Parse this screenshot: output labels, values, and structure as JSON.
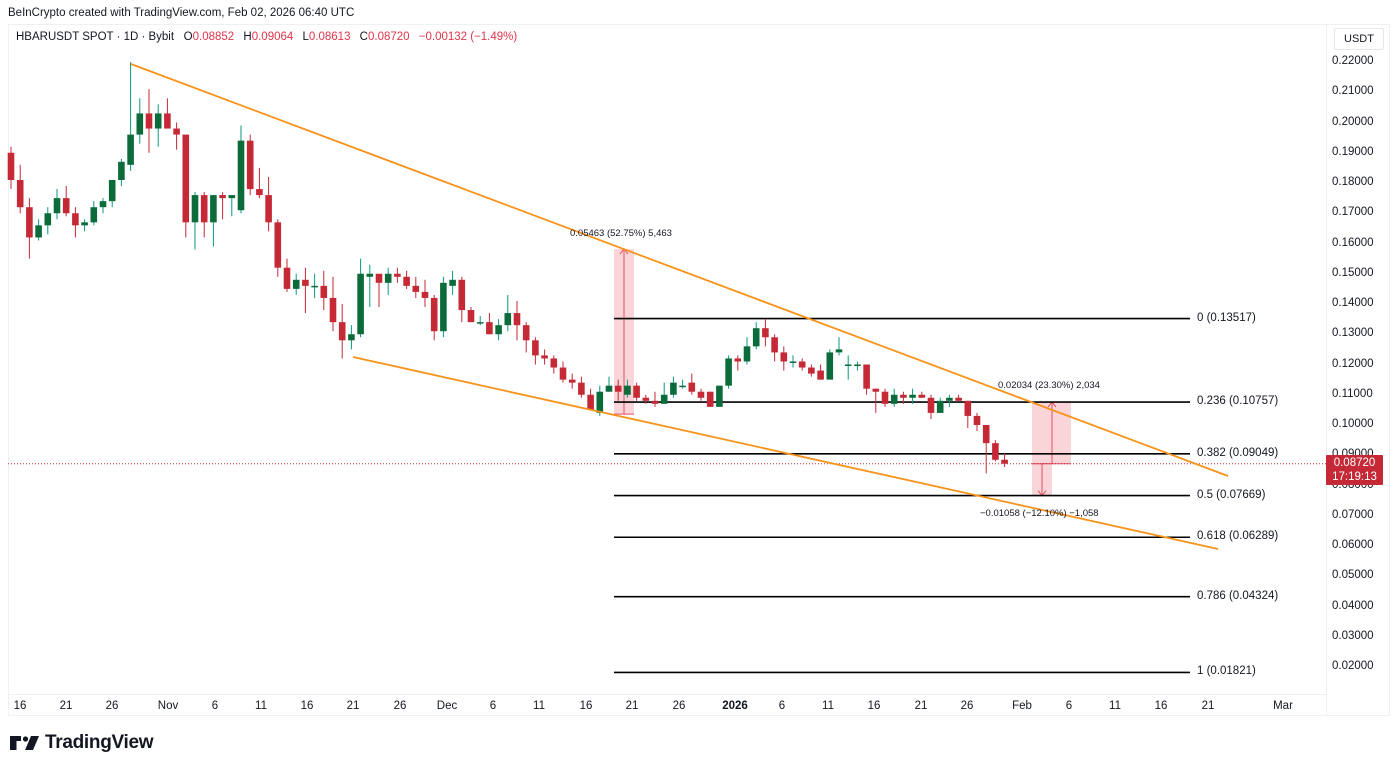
{
  "header": {
    "credit": "BeInCrypto created with TradingView.com, Feb 02, 2026 06:40 UTC",
    "symbol": "HBARUSDT SPOT · 1D · Bybit",
    "open_label": "O",
    "open": "0.08852",
    "high_label": "H",
    "high": "0.09064",
    "low_label": "L",
    "low": "0.08613",
    "close_label": "C",
    "close": "0.08720",
    "change": "−0.00132 (−1.49%)"
  },
  "price_axis": {
    "currency": "USDT",
    "last_price": "0.08720",
    "countdown": "17:19:13"
  },
  "branding": {
    "logo_text": "TradingView"
  },
  "colors": {
    "up": "#089981",
    "up_body": "#0b6b3a",
    "down": "#c42935",
    "trendline": "#f7931a",
    "fib_line": "#000000",
    "measure_fill": "#f7c6cb",
    "measure_line": "#e05263",
    "last_price_line": "#c42935"
  },
  "chart_data": {
    "type": "candlestick",
    "title": "HBARUSDT SPOT · 1D · Bybit",
    "xlabel": "",
    "ylabel": "USDT",
    "ylim": [
      0.015,
      0.225
    ],
    "y_ticks": [
      "0.22000",
      "0.21000",
      "0.20000",
      "0.19000",
      "0.18000",
      "0.17000",
      "0.16000",
      "0.15000",
      "0.14000",
      "0.13000",
      "0.12000",
      "0.11000",
      "0.10000",
      "0.09000",
      "0.08000",
      "0.07000",
      "0.06000",
      "0.05000",
      "0.04000",
      "0.03000",
      "0.02000"
    ],
    "x_ticks": [
      "16",
      "21",
      "26",
      "Nov",
      "6",
      "11",
      "16",
      "21",
      "26",
      "Dec",
      "6",
      "11",
      "16",
      "21",
      "26",
      "2026",
      "6",
      "11",
      "16",
      "21",
      "26",
      "Feb",
      "6",
      "11",
      "16",
      "21",
      "Mar"
    ],
    "candles_start": "Oct 16",
    "candles": [
      [
        0.19,
        0.192,
        0.178,
        0.181
      ],
      [
        0.181,
        0.186,
        0.17,
        0.172
      ],
      [
        0.172,
        0.175,
        0.155,
        0.162
      ],
      [
        0.162,
        0.168,
        0.161,
        0.166
      ],
      [
        0.166,
        0.172,
        0.163,
        0.17
      ],
      [
        0.17,
        0.178,
        0.168,
        0.175
      ],
      [
        0.175,
        0.179,
        0.169,
        0.17
      ],
      [
        0.17,
        0.172,
        0.162,
        0.166
      ],
      [
        0.166,
        0.168,
        0.164,
        0.167
      ],
      [
        0.167,
        0.174,
        0.166,
        0.172
      ],
      [
        0.172,
        0.175,
        0.17,
        0.174
      ],
      [
        0.174,
        0.181,
        0.172,
        0.181
      ],
      [
        0.181,
        0.188,
        0.179,
        0.187
      ],
      [
        0.186,
        0.22,
        0.184,
        0.196
      ],
      [
        0.196,
        0.208,
        0.193,
        0.203
      ],
      [
        0.203,
        0.211,
        0.19,
        0.198
      ],
      [
        0.198,
        0.206,
        0.192,
        0.203
      ],
      [
        0.203,
        0.208,
        0.198,
        0.198
      ],
      [
        0.198,
        0.2,
        0.191,
        0.196
      ],
      [
        0.196,
        0.195,
        0.162,
        0.167
      ],
      [
        0.167,
        0.177,
        0.158,
        0.176
      ],
      [
        0.176,
        0.177,
        0.162,
        0.167
      ],
      [
        0.167,
        0.176,
        0.159,
        0.176
      ],
      [
        0.176,
        0.177,
        0.168,
        0.175
      ],
      [
        0.175,
        0.176,
        0.169,
        0.176
      ],
      [
        0.171,
        0.199,
        0.17,
        0.194
      ],
      [
        0.194,
        0.196,
        0.176,
        0.178
      ],
      [
        0.178,
        0.185,
        0.175,
        0.176
      ],
      [
        0.176,
        0.182,
        0.164,
        0.167
      ],
      [
        0.167,
        0.168,
        0.149,
        0.152
      ],
      [
        0.152,
        0.155,
        0.144,
        0.145
      ],
      [
        0.145,
        0.15,
        0.143,
        0.148
      ],
      [
        0.148,
        0.152,
        0.137,
        0.146
      ],
      [
        0.146,
        0.15,
        0.142,
        0.146
      ],
      [
        0.146,
        0.151,
        0.138,
        0.142
      ],
      [
        0.142,
        0.149,
        0.131,
        0.134
      ],
      [
        0.134,
        0.14,
        0.122,
        0.128
      ],
      [
        0.128,
        0.133,
        0.125,
        0.13
      ],
      [
        0.13,
        0.155,
        0.129,
        0.15
      ],
      [
        0.149,
        0.153,
        0.139,
        0.15
      ],
      [
        0.15,
        0.149,
        0.139,
        0.147
      ],
      [
        0.147,
        0.152,
        0.143,
        0.15
      ],
      [
        0.15,
        0.152,
        0.147,
        0.149
      ],
      [
        0.149,
        0.151,
        0.145,
        0.146
      ],
      [
        0.146,
        0.149,
        0.142,
        0.144
      ],
      [
        0.144,
        0.148,
        0.139,
        0.142
      ],
      [
        0.142,
        0.143,
        0.128,
        0.131
      ],
      [
        0.131,
        0.149,
        0.129,
        0.147
      ],
      [
        0.146,
        0.151,
        0.143,
        0.148
      ],
      [
        0.148,
        0.149,
        0.134,
        0.138
      ],
      [
        0.138,
        0.139,
        0.134,
        0.134
      ],
      [
        0.134,
        0.136,
        0.133,
        0.134
      ],
      [
        0.134,
        0.137,
        0.13,
        0.13
      ],
      [
        0.13,
        0.135,
        0.128,
        0.133
      ],
      [
        0.133,
        0.143,
        0.131,
        0.137
      ],
      [
        0.137,
        0.141,
        0.128,
        0.133
      ],
      [
        0.133,
        0.134,
        0.124,
        0.128
      ],
      [
        0.128,
        0.129,
        0.12,
        0.123
      ],
      [
        0.123,
        0.125,
        0.12,
        0.122
      ],
      [
        0.122,
        0.123,
        0.117,
        0.119
      ],
      [
        0.119,
        0.121,
        0.114,
        0.115
      ],
      [
        0.115,
        0.117,
        0.112,
        0.114
      ],
      [
        0.114,
        0.116,
        0.109,
        0.11
      ],
      [
        0.11,
        0.112,
        0.105,
        0.105
      ],
      [
        0.104,
        0.113,
        0.103,
        0.111
      ],
      [
        0.111,
        0.116,
        0.111,
        0.113
      ],
      [
        0.113,
        0.115,
        0.108,
        0.111
      ],
      [
        0.11,
        0.115,
        0.109,
        0.113
      ],
      [
        0.113,
        0.114,
        0.108,
        0.109
      ],
      [
        0.109,
        0.11,
        0.107,
        0.108
      ],
      [
        0.108,
        0.111,
        0.106,
        0.107
      ],
      [
        0.107,
        0.114,
        0.107,
        0.11
      ],
      [
        0.11,
        0.116,
        0.109,
        0.114
      ],
      [
        0.113,
        0.115,
        0.112,
        0.113
      ],
      [
        0.114,
        0.117,
        0.11,
        0.111
      ],
      [
        0.111,
        0.112,
        0.108,
        0.109
      ],
      [
        0.111,
        0.111,
        0.106,
        0.106
      ],
      [
        0.106,
        0.113,
        0.106,
        0.113
      ],
      [
        0.113,
        0.123,
        0.112,
        0.122
      ],
      [
        0.122,
        0.123,
        0.118,
        0.121
      ],
      [
        0.121,
        0.129,
        0.12,
        0.126
      ],
      [
        0.126,
        0.134,
        0.125,
        0.132
      ],
      [
        0.132,
        0.135,
        0.126,
        0.129
      ],
      [
        0.129,
        0.13,
        0.121,
        0.124
      ],
      [
        0.124,
        0.126,
        0.118,
        0.121
      ],
      [
        0.121,
        0.123,
        0.119,
        0.121
      ],
      [
        0.121,
        0.122,
        0.118,
        0.119
      ],
      [
        0.119,
        0.12,
        0.116,
        0.117
      ],
      [
        0.118,
        0.12,
        0.115,
        0.115
      ],
      [
        0.115,
        0.125,
        0.115,
        0.124
      ],
      [
        0.124,
        0.129,
        0.123,
        0.125
      ],
      [
        0.12,
        0.123,
        0.115,
        0.12
      ],
      [
        0.12,
        0.121,
        0.118,
        0.12
      ],
      [
        0.12,
        0.12,
        0.11,
        0.112
      ],
      [
        0.112,
        0.112,
        0.104,
        0.111
      ],
      [
        0.111,
        0.112,
        0.106,
        0.107
      ],
      [
        0.107,
        0.112,
        0.106,
        0.11
      ],
      [
        0.11,
        0.111,
        0.107,
        0.109
      ],
      [
        0.109,
        0.112,
        0.107,
        0.11
      ],
      [
        0.11,
        0.111,
        0.109,
        0.109
      ],
      [
        0.109,
        0.11,
        0.102,
        0.104
      ],
      [
        0.104,
        0.109,
        0.104,
        0.108
      ],
      [
        0.108,
        0.11,
        0.106,
        0.109
      ],
      [
        0.109,
        0.11,
        0.108,
        0.108
      ],
      [
        0.108,
        0.108,
        0.099,
        0.103
      ],
      [
        0.103,
        0.104,
        0.098,
        0.1
      ],
      [
        0.1,
        0.1,
        0.084,
        0.094
      ],
      [
        0.094,
        0.095,
        0.088,
        0.0885
      ],
      [
        0.08852,
        0.09064,
        0.08613,
        0.0872
      ]
    ],
    "trendlines": [
      {
        "name": "upper-wedge",
        "from": [
          0.22,
          "Oct 29"
        ],
        "to": [
          0.0833,
          "Feb 21"
        ]
      },
      {
        "name": "lower-wedge",
        "from": [
          0.1225,
          "Nov 21"
        ],
        "to": [
          0.0589,
          "Feb 21"
        ]
      }
    ],
    "fib_levels": [
      {
        "ratio": "0",
        "price": 0.13517,
        "label": "0 (0.13517)"
      },
      {
        "ratio": "0.236",
        "price": 0.10757,
        "label": "0.236 (0.10757)"
      },
      {
        "ratio": "0.382",
        "price": 0.09049,
        "label": "0.382 (0.09049)"
      },
      {
        "ratio": "0.5",
        "price": 0.07669,
        "label": "0.5 (0.07669)"
      },
      {
        "ratio": "0.618",
        "price": 0.06289,
        "label": "0.618 (0.06289)"
      },
      {
        "ratio": "0.786",
        "price": 0.04324,
        "label": "0.786 (0.04324)"
      },
      {
        "ratio": "1",
        "price": 0.01821,
        "label": "1 (0.01821)"
      }
    ],
    "measurements": [
      {
        "label": "0.05463 (52.75%) 5,463",
        "from": 0.1036,
        "to": 0.1582
      },
      {
        "label": "0.02034 (23.30%) 2,034",
        "from": 0.0872,
        "to": 0.10757
      },
      {
        "label": "−0.01058 (−12.10%) −1,058",
        "from": 0.0872,
        "to": 0.07669
      }
    ],
    "last_price": 0.0872
  }
}
